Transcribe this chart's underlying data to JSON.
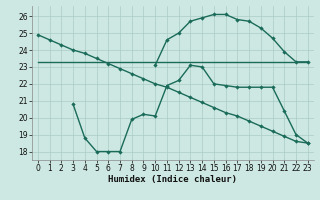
{
  "xlabel": "Humidex (Indice chaleur)",
  "xlim": [
    -0.5,
    23.5
  ],
  "ylim": [
    17.5,
    26.6
  ],
  "xticks": [
    0,
    1,
    2,
    3,
    4,
    5,
    6,
    7,
    8,
    9,
    10,
    11,
    12,
    13,
    14,
    15,
    16,
    17,
    18,
    19,
    20,
    21,
    22,
    23
  ],
  "yticks": [
    18,
    19,
    20,
    21,
    22,
    23,
    24,
    25,
    26
  ],
  "bg_color": "#cde8e2",
  "line_color": "#1a6b5a",
  "grid_color": "#aaccC4",
  "line1_x": [
    0,
    1,
    2,
    3,
    4,
    5,
    6,
    7,
    8,
    9,
    10,
    11,
    12,
    13,
    14,
    15,
    16,
    17,
    18,
    19,
    20,
    21,
    22,
    23
  ],
  "line1_y": [
    24.9,
    24.6,
    24.3,
    24.0,
    23.8,
    23.5,
    23.2,
    22.9,
    22.6,
    22.3,
    22.0,
    21.8,
    21.5,
    21.2,
    20.9,
    20.6,
    20.3,
    20.1,
    19.8,
    19.5,
    19.2,
    18.9,
    18.6,
    18.5
  ],
  "line2_x": [
    0,
    3,
    17,
    23
  ],
  "line2_y": [
    23.3,
    23.3,
    23.3,
    23.3
  ],
  "line3_x": [
    10,
    11,
    12,
    13,
    14,
    15,
    16,
    17,
    18,
    19,
    20,
    21,
    22,
    23
  ],
  "line3_y": [
    23.1,
    24.6,
    25.0,
    25.7,
    25.9,
    26.1,
    26.1,
    25.8,
    25.7,
    25.3,
    24.7,
    23.9,
    23.3,
    23.3
  ],
  "line3_start_x": 10,
  "line3_start_y": 23.1,
  "line4_x": [
    3,
    4,
    5,
    6,
    7,
    8,
    9,
    10,
    11,
    12,
    13,
    14,
    15,
    16,
    17,
    18,
    19,
    20,
    21,
    22,
    23
  ],
  "line4_y": [
    20.8,
    18.8,
    18.0,
    18.0,
    18.0,
    19.9,
    20.2,
    20.1,
    21.9,
    22.2,
    23.1,
    23.0,
    22.0,
    21.9,
    21.8,
    21.8,
    21.8,
    21.8,
    20.4,
    19.0,
    18.5
  ],
  "marker": "D",
  "markersize": 2.2,
  "linewidth": 1.0,
  "tick_fontsize": 5.5,
  "label_fontsize": 6.5
}
